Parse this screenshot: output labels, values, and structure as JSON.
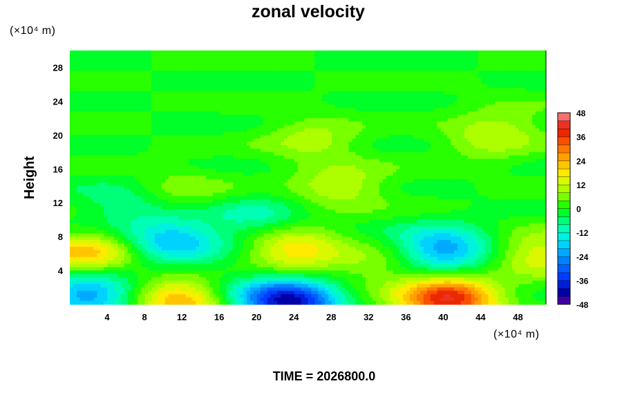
{
  "chart_data": {
    "type": "heatmap",
    "title": "zonal velocity",
    "ylabel": "Height",
    "xlabel": "",
    "x_unit": "(×10⁴ m)",
    "y_unit": "(×10⁴ m)",
    "xlim": [
      0,
      51
    ],
    "ylim": [
      0,
      30
    ],
    "x_ticks": [
      4,
      8,
      12,
      16,
      20,
      24,
      28,
      32,
      36,
      40,
      44,
      48
    ],
    "y_ticks": [
      4,
      8,
      12,
      16,
      20,
      24,
      28
    ],
    "colorbar": {
      "range": [
        -48,
        48
      ],
      "ticks": [
        48,
        36,
        24,
        12,
        0,
        -12,
        -24,
        -36,
        -48
      ],
      "step": 4
    },
    "field": {
      "background": 0,
      "features": [
        {
          "x": 2,
          "y": 1.3,
          "value": -25
        },
        {
          "x": 1.8,
          "y": 5.9,
          "value": 22
        },
        {
          "x": 11,
          "y": 7.5,
          "value": -20
        },
        {
          "x": 12,
          "y": 0.5,
          "value": 26
        },
        {
          "x": 24,
          "y": 6.5,
          "value": 20
        },
        {
          "x": 23.5,
          "y": 0.3,
          "value": -42
        },
        {
          "x": 40.5,
          "y": 0.6,
          "value": 40
        },
        {
          "x": 40,
          "y": 6.5,
          "value": -24
        },
        {
          "x": 50.5,
          "y": 6,
          "value": 16
        },
        {
          "x": 29,
          "y": 14,
          "value": 12
        },
        {
          "x": 26,
          "y": 19.5,
          "value": 10
        },
        {
          "x": 45,
          "y": 19.5,
          "value": 9
        },
        {
          "x": 12,
          "y": 13.5,
          "value": 7
        },
        {
          "x": 47,
          "y": 21.8,
          "value": 5
        },
        {
          "x": 20,
          "y": 10,
          "value": -10
        },
        {
          "x": 6,
          "y": 11.8,
          "value": -8
        },
        {
          "x": 33,
          "y": 4.5,
          "value": 8
        },
        {
          "x": 17,
          "y": 2,
          "value": -6
        }
      ]
    },
    "footer": "TIME = 2026800.0"
  }
}
